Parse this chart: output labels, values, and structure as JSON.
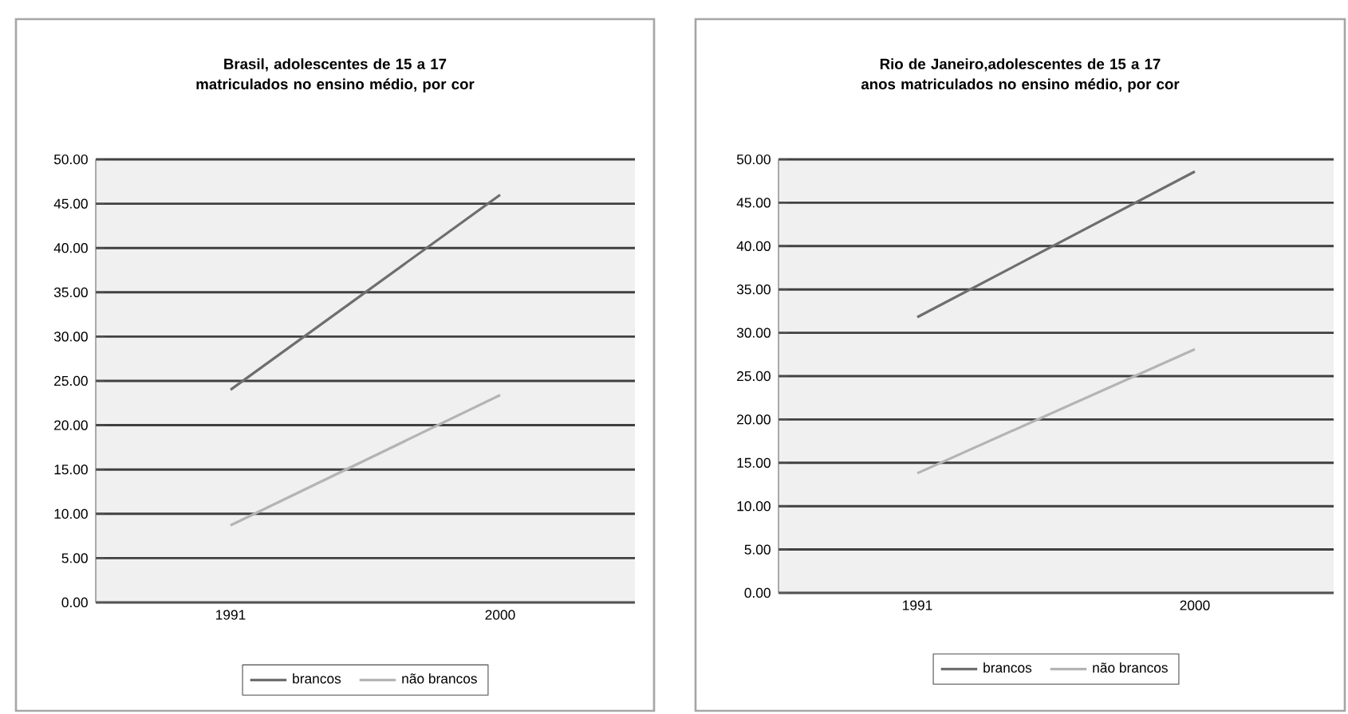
{
  "chart_data": [
    {
      "type": "line",
      "title": "Brasil, adolescentes de 15 a 17 matriculados no ensino médio, por cor",
      "categories": [
        "1991",
        "2000"
      ],
      "series": [
        {
          "name": "brancos",
          "color": "#6e6e6e",
          "values": [
            24,
            46
          ]
        },
        {
          "name": "não brancos",
          "color": "#b4b4b4",
          "values": [
            8.7,
            23.4
          ]
        }
      ],
      "ylim": [
        0,
        50
      ],
      "yticks": [
        {
          "value": 0,
          "label": "0.00"
        },
        {
          "value": 5,
          "label": "5.00"
        },
        {
          "value": 10,
          "label": "10.00"
        },
        {
          "value": 15,
          "label": "15.00"
        },
        {
          "value": 20,
          "label": "20.00"
        },
        {
          "value": 25,
          "label": "25.00"
        },
        {
          "value": 30,
          "label": "30.00"
        },
        {
          "value": 35,
          "label": "35.00"
        },
        {
          "value": 40,
          "label": "40.00"
        },
        {
          "value": 45,
          "label": "45.00"
        },
        {
          "value": 50,
          "label": "50.00"
        }
      ],
      "grid": "y",
      "legend": "bottom",
      "marker": "none",
      "line_style": "solid"
    },
    {
      "type": "line",
      "title": "Rio de Janeiro,adolescentes de 15 a 17 anos matriculados no ensino médio, por cor",
      "categories": [
        "1991",
        "2000"
      ],
      "series": [
        {
          "name": "brancos",
          "color": "#6e6e6e",
          "values": [
            31.8,
            48.6
          ]
        },
        {
          "name": "não brancos",
          "color": "#b4b4b4",
          "values": [
            13.8,
            28.1
          ]
        }
      ],
      "ylim": [
        0,
        50
      ],
      "yticks": [
        {
          "value": 0,
          "label": "0.00"
        },
        {
          "value": 5,
          "label": "5.00"
        },
        {
          "value": 10,
          "label": "10.00"
        },
        {
          "value": 15,
          "label": "15.00"
        },
        {
          "value": 20,
          "label": "20.00"
        },
        {
          "value": 25,
          "label": "25.00"
        },
        {
          "value": 30,
          "label": "30.00"
        },
        {
          "value": 35,
          "label": "35.00"
        },
        {
          "value": 40,
          "label": "40.00"
        },
        {
          "value": 45,
          "label": "45.00"
        },
        {
          "value": 50,
          "label": "50.00"
        }
      ],
      "grid": "y",
      "legend": "bottom",
      "marker": "none",
      "line_style": "solid"
    }
  ]
}
